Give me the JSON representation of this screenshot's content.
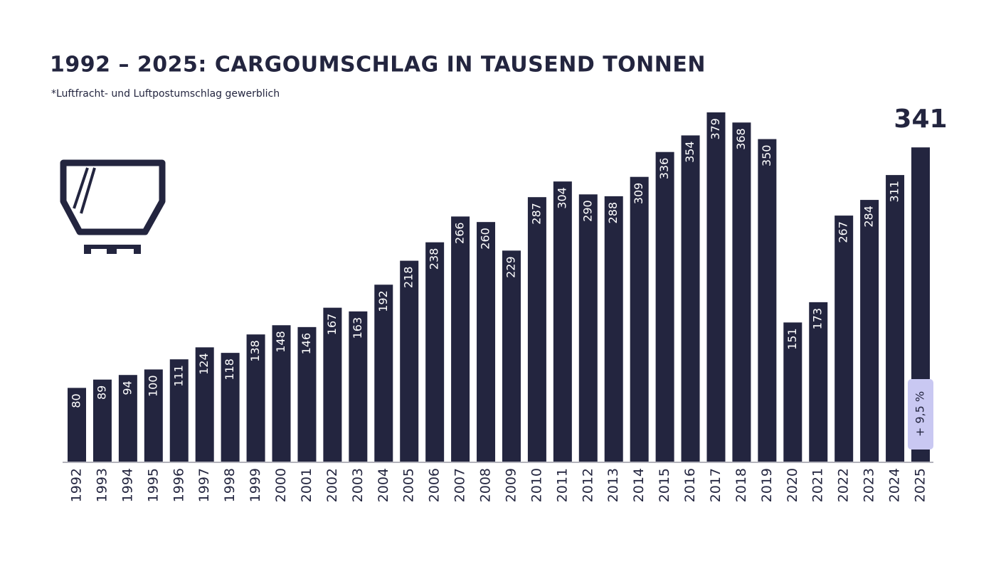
{
  "chart_data": {
    "type": "bar",
    "title": "1992 – 2025: CARGOUMSCHLAG IN TAUSEND TONNEN",
    "subtitle": "*Luftfracht- und Luftpostumschlag gewerblich",
    "categories": [
      "1992",
      "1993",
      "1994",
      "1995",
      "1996",
      "1997",
      "1998",
      "1999",
      "2000",
      "2001",
      "2002",
      "2003",
      "2004",
      "2005",
      "2006",
      "2007",
      "2008",
      "2009",
      "2010",
      "2011",
      "2012",
      "2013",
      "2014",
      "2015",
      "2016",
      "2017",
      "2018",
      "2019",
      "2020",
      "2021",
      "2022",
      "2023",
      "2024",
      "2025"
    ],
    "values": [
      80,
      89,
      94,
      100,
      111,
      124,
      118,
      138,
      148,
      146,
      167,
      163,
      192,
      218,
      238,
      266,
      260,
      229,
      287,
      304,
      290,
      288,
      309,
      336,
      354,
      379,
      368,
      350,
      151,
      173,
      267,
      284,
      311,
      341
    ],
    "color": "#23253f",
    "annotation": "+ 9,5 %"
  }
}
